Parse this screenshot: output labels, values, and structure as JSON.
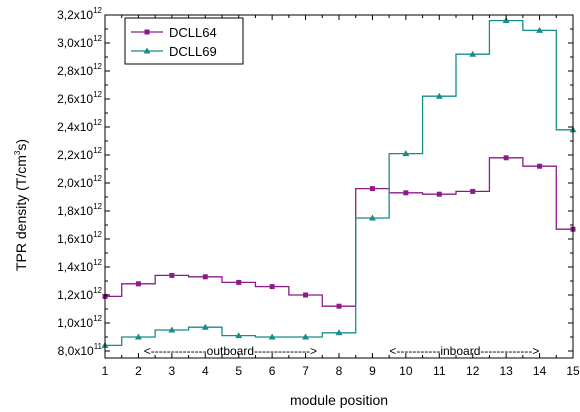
{
  "chart_data": {
    "type": "line",
    "step": true,
    "xlabel": "module position",
    "ylabel": {
      "prefix": "TPR density (T/cm",
      "sup": "3",
      "suffix": "s)"
    },
    "xlim": [
      1,
      15
    ],
    "ylim": [
      0.75,
      3.2
    ],
    "x": [
      1,
      2,
      3,
      4,
      5,
      6,
      7,
      8,
      9,
      10,
      11,
      12,
      13,
      14,
      15
    ],
    "x_ticks": [
      "1",
      "2",
      "3",
      "4",
      "5",
      "6",
      "7",
      "8",
      "9",
      "10",
      "11",
      "12",
      "13",
      "14",
      "15"
    ],
    "y_ticks": [
      {
        "value": 0.8,
        "mantissa": "8,0x10",
        "exp": "11"
      },
      {
        "value": 1.0,
        "mantissa": "1,0x10",
        "exp": "12"
      },
      {
        "value": 1.2,
        "mantissa": "1,2x10",
        "exp": "12"
      },
      {
        "value": 1.4,
        "mantissa": "1,4x10",
        "exp": "12"
      },
      {
        "value": 1.6,
        "mantissa": "1,6x10",
        "exp": "12"
      },
      {
        "value": 1.8,
        "mantissa": "1,8x10",
        "exp": "12"
      },
      {
        "value": 2.0,
        "mantissa": "2,0x10",
        "exp": "12"
      },
      {
        "value": 2.2,
        "mantissa": "2,2x10",
        "exp": "12"
      },
      {
        "value": 2.4,
        "mantissa": "2,4x10",
        "exp": "12"
      },
      {
        "value": 2.6,
        "mantissa": "2,6x10",
        "exp": "12"
      },
      {
        "value": 2.8,
        "mantissa": "2,8x10",
        "exp": "12"
      },
      {
        "value": 3.0,
        "mantissa": "3,0x10",
        "exp": "12"
      },
      {
        "value": 3.2,
        "mantissa": "3,2x10",
        "exp": "12"
      }
    ],
    "series": [
      {
        "name": "DCLL64",
        "color": "#8b1a8b",
        "marker": "square",
        "values": [
          1.19,
          1.28,
          1.34,
          1.33,
          1.29,
          1.26,
          1.2,
          1.12,
          1.96,
          1.93,
          1.92,
          1.94,
          2.18,
          2.12,
          1.67
        ]
      },
      {
        "name": "DCLL69",
        "color": "#178c8c",
        "marker": "triangle",
        "values": [
          0.84,
          0.9,
          0.95,
          0.97,
          0.91,
          0.9,
          0.9,
          0.93,
          1.75,
          2.21,
          2.62,
          2.92,
          3.16,
          3.09,
          2.38
        ]
      }
    ],
    "legend": "top-left",
    "regions": [
      {
        "label": "<--------------outboard-------------->",
        "from": 1,
        "to": 8.5
      },
      {
        "label": "<-----------inboard------------->",
        "from": 8.5,
        "to": 15
      }
    ],
    "grid": false
  }
}
